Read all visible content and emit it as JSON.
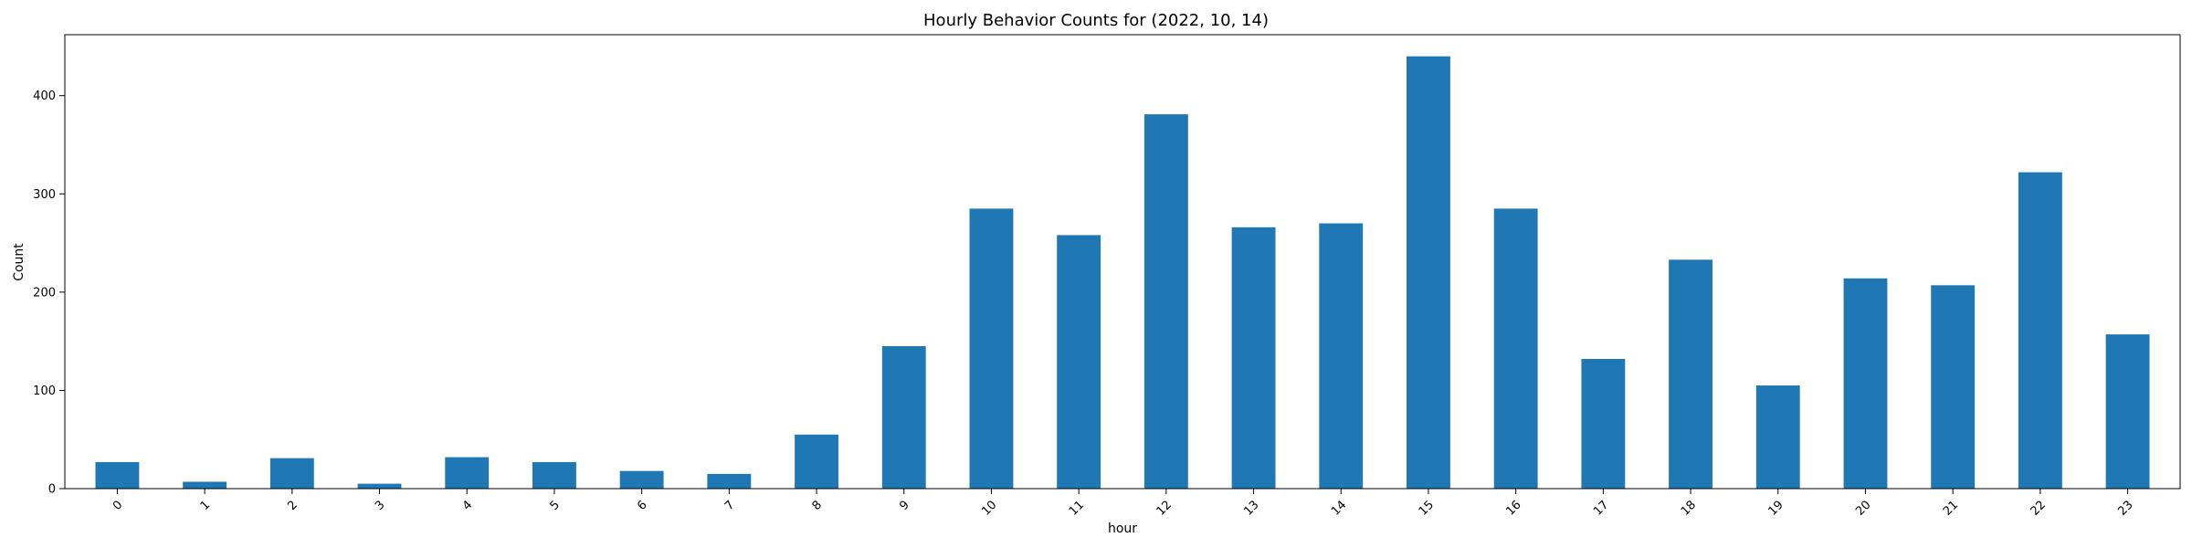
{
  "chart_data": {
    "type": "bar",
    "title": "Hourly Behavior Counts for (2022, 10, 14)",
    "xlabel": "hour",
    "ylabel": "Count",
    "categories": [
      "0",
      "1",
      "2",
      "3",
      "4",
      "5",
      "6",
      "7",
      "8",
      "9",
      "10",
      "11",
      "12",
      "13",
      "14",
      "15",
      "16",
      "17",
      "18",
      "19",
      "20",
      "21",
      "22",
      "23"
    ],
    "values": [
      27,
      7,
      31,
      5,
      32,
      27,
      18,
      15,
      55,
      145,
      285,
      258,
      381,
      266,
      270,
      440,
      285,
      132,
      233,
      105,
      214,
      207,
      322,
      157
    ],
    "ylim": [
      0,
      462
    ],
    "yticks": [
      0,
      100,
      200,
      300,
      400
    ],
    "x_tick_rotation": 45,
    "grid": false,
    "legend": "none",
    "bar_color": "#1f77b4"
  }
}
